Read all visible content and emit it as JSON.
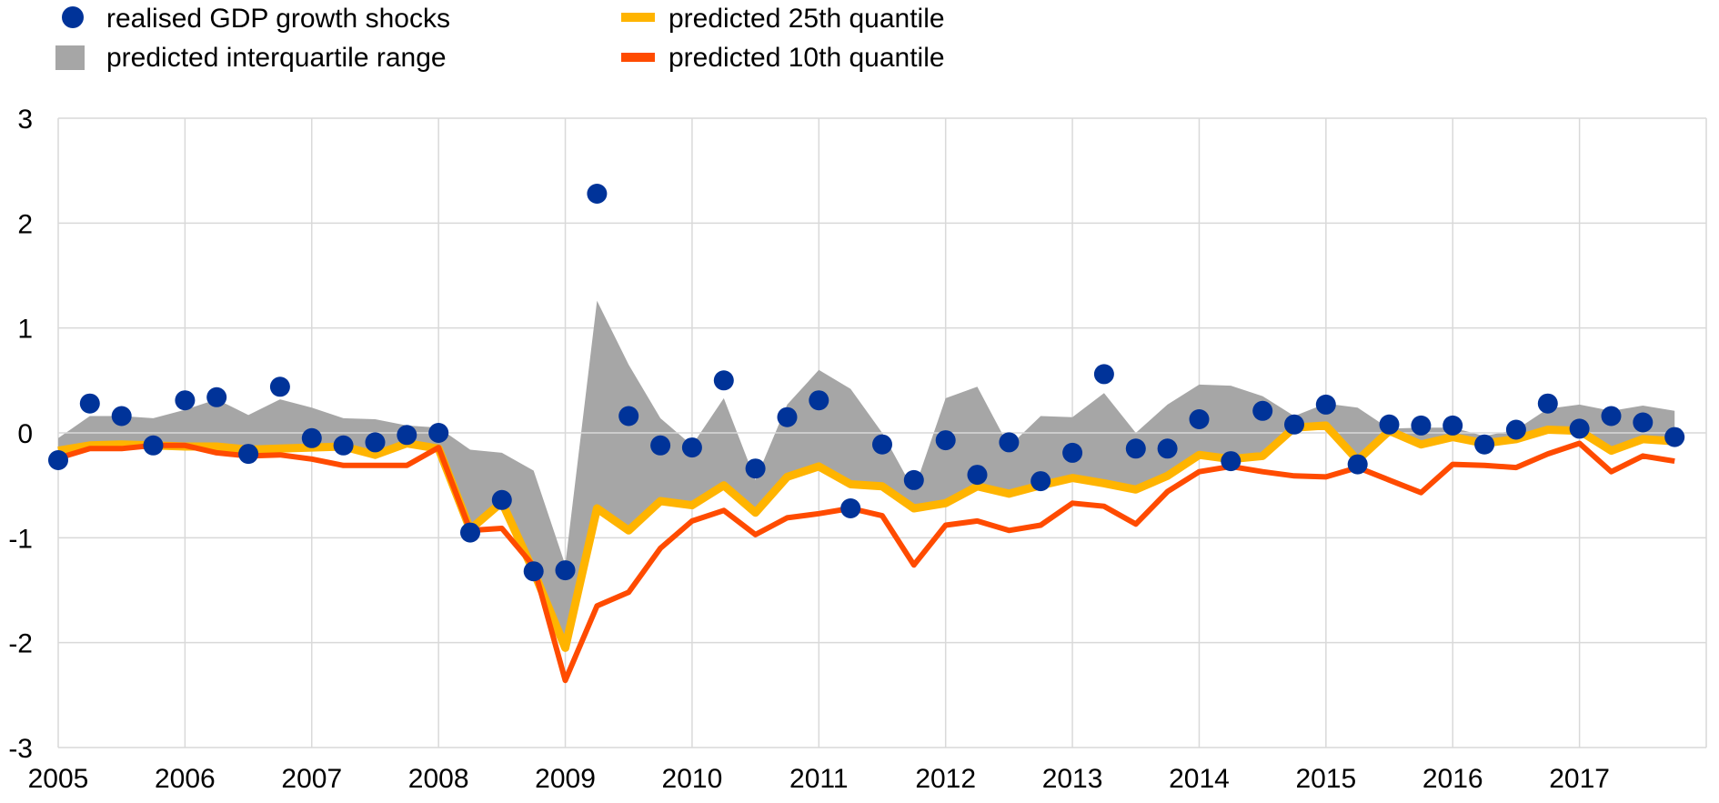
{
  "chart_data": {
    "type": "line",
    "title": "",
    "xlabel": "",
    "ylabel": "",
    "ylim": [
      -3,
      3
    ],
    "yticks": [
      "3",
      "2",
      "1",
      "0",
      "-1",
      "-2",
      "-3"
    ],
    "x_tick_labels": [
      "2005",
      "2006",
      "2007",
      "2008",
      "2009",
      "2010",
      "2011",
      "2012",
      "2013",
      "2014",
      "2015",
      "2016",
      "2017"
    ],
    "grid": true,
    "legend_placement": "top",
    "legend": {
      "dots": "realised GDP growth shocks",
      "iqr": "predicted interquartile range",
      "q25": "predicted 25th quantile",
      "q10": "predicted 10th quantile"
    },
    "colors": {
      "dots": "#003399",
      "iqr": "#a6a6a6",
      "q25": "#ffb400",
      "q10": "#ff4b00",
      "grid": "#d9d9d9"
    },
    "x_start": 2005.0,
    "x_step": 0.25,
    "series": [
      {
        "name": "realised GDP growth shocks",
        "kind": "scatter",
        "values": [
          -0.26,
          0.28,
          0.16,
          -0.12,
          0.31,
          0.34,
          -0.2,
          0.44,
          -0.05,
          -0.12,
          -0.09,
          -0.02,
          0.0,
          -0.95,
          -0.64,
          -1.32,
          -1.31,
          2.28,
          0.16,
          -0.12,
          -0.14,
          0.5,
          -0.34,
          0.15,
          0.31,
          -0.72,
          -0.11,
          -0.45,
          -0.07,
          -0.4,
          -0.09,
          -0.46,
          -0.19,
          0.56,
          -0.15,
          -0.15,
          0.13,
          -0.27,
          0.21,
          0.08,
          0.27,
          -0.3,
          0.08,
          0.07,
          0.07,
          -0.11,
          0.03,
          0.28,
          0.04,
          0.16,
          0.1,
          -0.04
        ]
      },
      {
        "name": "predicted interquartile range upper",
        "kind": "band-upper",
        "values": [
          -0.05,
          0.16,
          0.16,
          0.14,
          0.22,
          0.32,
          0.17,
          0.32,
          0.24,
          0.14,
          0.13,
          0.07,
          0.05,
          -0.16,
          -0.19,
          -0.36,
          -1.26,
          1.26,
          0.65,
          0.14,
          -0.12,
          0.33,
          -0.45,
          0.27,
          0.6,
          0.42,
          0.0,
          -0.55,
          0.33,
          0.44,
          -0.13,
          0.16,
          0.15,
          0.38,
          0.0,
          0.27,
          0.46,
          0.45,
          0.35,
          0.16,
          0.28,
          0.24,
          0.04,
          0.05,
          0.05,
          -0.03,
          0.03,
          0.23,
          0.27,
          0.21,
          0.26,
          0.21
        ]
      },
      {
        "name": "predicted 25th quantile",
        "kind": "line",
        "values": [
          -0.17,
          -0.12,
          -0.11,
          -0.12,
          -0.13,
          -0.13,
          -0.16,
          -0.15,
          -0.14,
          -0.13,
          -0.21,
          -0.1,
          -0.15,
          -0.92,
          -0.66,
          -1.32,
          -2.05,
          -0.72,
          -0.93,
          -0.65,
          -0.69,
          -0.5,
          -0.76,
          -0.42,
          -0.32,
          -0.49,
          -0.51,
          -0.72,
          -0.67,
          -0.51,
          -0.58,
          -0.5,
          -0.43,
          -0.48,
          -0.54,
          -0.41,
          -0.21,
          -0.25,
          -0.22,
          0.05,
          0.07,
          -0.26,
          0.02,
          -0.11,
          -0.04,
          -0.1,
          -0.06,
          0.03,
          0.02,
          -0.17,
          -0.06,
          -0.08
        ]
      },
      {
        "name": "predicted 10th quantile",
        "kind": "line",
        "values": [
          -0.24,
          -0.15,
          -0.15,
          -0.12,
          -0.12,
          -0.19,
          -0.22,
          -0.21,
          -0.25,
          -0.31,
          -0.31,
          -0.31,
          -0.14,
          -0.93,
          -0.91,
          -1.27,
          -2.36,
          -1.65,
          -1.52,
          -1.1,
          -0.84,
          -0.74,
          -0.97,
          -0.81,
          -0.77,
          -0.72,
          -0.79,
          -1.26,
          -0.88,
          -0.84,
          -0.93,
          -0.88,
          -0.67,
          -0.7,
          -0.87,
          -0.56,
          -0.37,
          -0.32,
          -0.37,
          -0.41,
          -0.42,
          -0.33,
          -0.45,
          -0.57,
          -0.3,
          -0.31,
          -0.33,
          -0.2,
          -0.1,
          -0.37,
          -0.22,
          -0.27
        ]
      }
    ]
  }
}
